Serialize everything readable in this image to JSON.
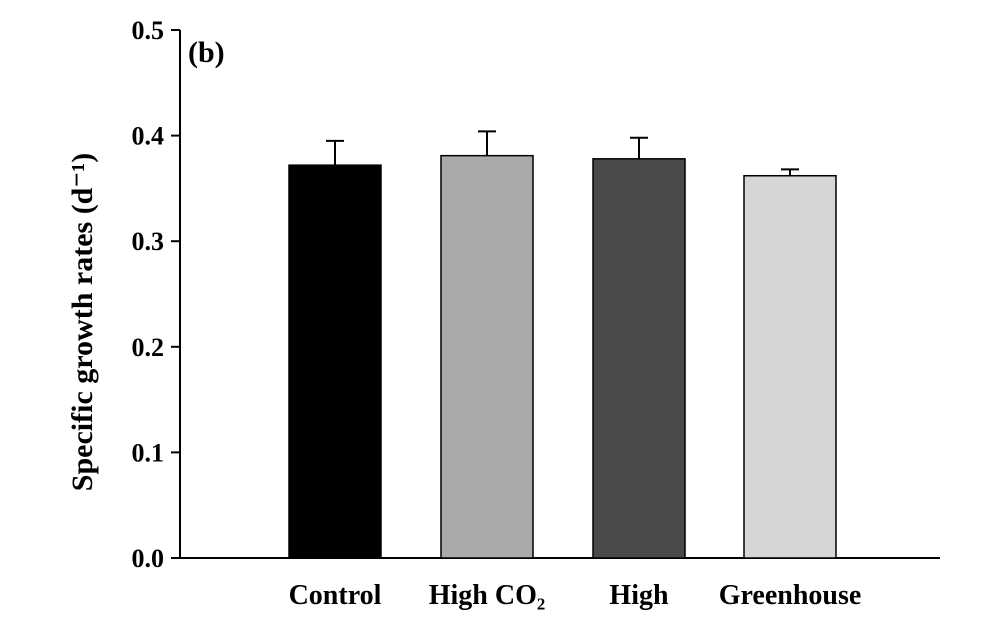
{
  "chart_data": {
    "type": "bar",
    "panel_label": "(b)",
    "ylabel": "Specific growth rates (d⁻¹)",
    "xlabel": "",
    "ylim": [
      0,
      0.5
    ],
    "yticks": [
      "0.0",
      "0.1",
      "0.2",
      "0.3",
      "0.4",
      "0.5"
    ],
    "categories": [
      "Control",
      "High CO₂",
      "High",
      "Greenhouse"
    ],
    "values": [
      0.372,
      0.381,
      0.378,
      0.362
    ],
    "errors": [
      0.023,
      0.023,
      0.02,
      0.006
    ],
    "colors": [
      "#000000",
      "#aaaaaa",
      "#4a4a4a",
      "#d6d6d6"
    ],
    "grid": false,
    "legend": "none"
  }
}
